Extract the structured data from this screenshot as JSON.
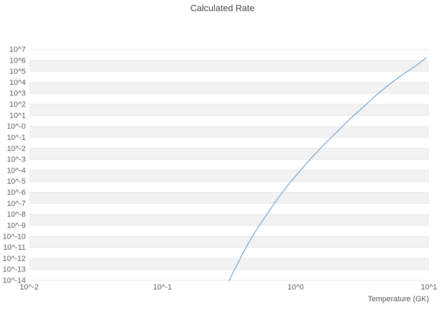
{
  "chart_data": {
    "type": "line",
    "title": "Calculated Rate",
    "xlabel": "Temperature (GK)",
    "ylabel": "",
    "x_scale": "log10",
    "y_scale": "log10",
    "xlim_log10": [
      -2,
      1
    ],
    "ylim_log10": [
      -14,
      7
    ],
    "x_ticks": [
      "10^-2",
      "10^-1",
      "10^0",
      "10^1"
    ],
    "y_ticks": [
      "10^7",
      "10^6",
      "10^5",
      "10^4",
      "10^3",
      "10^2",
      "10^1",
      "10^-0",
      "10^-1",
      "10^-2",
      "10^-3",
      "10^-4",
      "10^-5",
      "10^-6",
      "10^-7",
      "10^-8",
      "10^-9",
      "10^-10",
      "10^-11",
      "10^-12",
      "10^-13",
      "10^-14"
    ],
    "legend": "none",
    "grid": "horizontal-stripes",
    "series": [
      {
        "name": "calculated-rate",
        "color": "#6ba3d6",
        "points_log10": [
          [
            -0.5,
            -14.0
          ],
          [
            -0.45,
            -12.8
          ],
          [
            -0.4,
            -11.6
          ],
          [
            -0.35,
            -10.5
          ],
          [
            -0.3,
            -9.5
          ],
          [
            -0.25,
            -8.6
          ],
          [
            -0.2,
            -7.7
          ],
          [
            -0.15,
            -6.8
          ],
          [
            -0.1,
            -6.0
          ],
          [
            -0.05,
            -5.2
          ],
          [
            0.0,
            -4.5
          ],
          [
            0.1,
            -3.1
          ],
          [
            0.2,
            -1.8
          ],
          [
            0.3,
            -0.6
          ],
          [
            0.4,
            0.6
          ],
          [
            0.5,
            1.7
          ],
          [
            0.6,
            2.8
          ],
          [
            0.7,
            3.8
          ],
          [
            0.8,
            4.7
          ],
          [
            0.9,
            5.5
          ],
          [
            0.98,
            6.25
          ]
        ]
      }
    ]
  },
  "colors": {
    "line": "#6ba3d6",
    "stripe": "#f2f2f2",
    "gridline": "#e8e8e8",
    "tick_text": "#5a5a5a",
    "title_text": "#474747"
  }
}
